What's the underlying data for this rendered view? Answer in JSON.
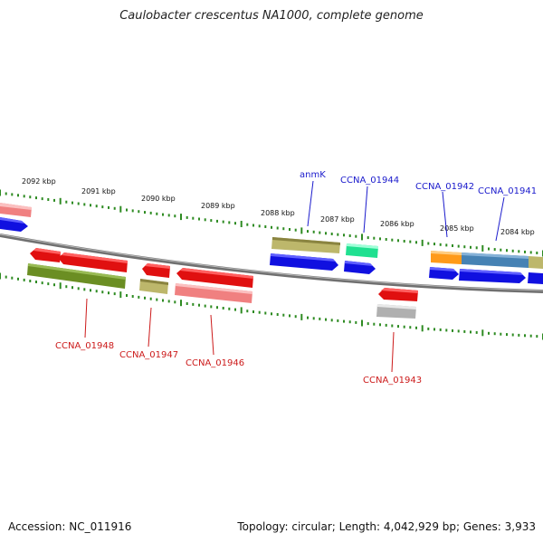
{
  "title": "Caulobacter crescentus NA1000, complete genome",
  "accession": "Accession: NC_011916",
  "summary": "Topology: circular; Length: 4,042,929 bp; Genes: 3,933",
  "ticks": [
    "2092 kbp",
    "2091 kbp",
    "2090 kbp",
    "2089 kbp",
    "2088 kbp",
    "2087 kbp",
    "2086 kbp",
    "2085 kbp",
    "2084 kbp"
  ],
  "genes_top": [
    "anmK",
    "CCNA_01944",
    "CCNA_01942",
    "CCNA_01941"
  ],
  "genes_bottom": [
    "CCNA_01948",
    "CCNA_01947",
    "CCNA_01946",
    "CCNA_01943"
  ],
  "colors": {
    "label_top": "#1a1acc",
    "label_bottom": "#cc1a1a",
    "backbone": "#808080",
    "tick": "#2e8b22",
    "blue": "#1010e0",
    "red": "#e01010",
    "salmon": "#f08080",
    "olive": "#6b8e23",
    "khaki": "#bdb76b",
    "green": "#20e090",
    "orange": "#ff9a1a",
    "steel": "#4682b4",
    "gray": "#b0b0b0"
  }
}
